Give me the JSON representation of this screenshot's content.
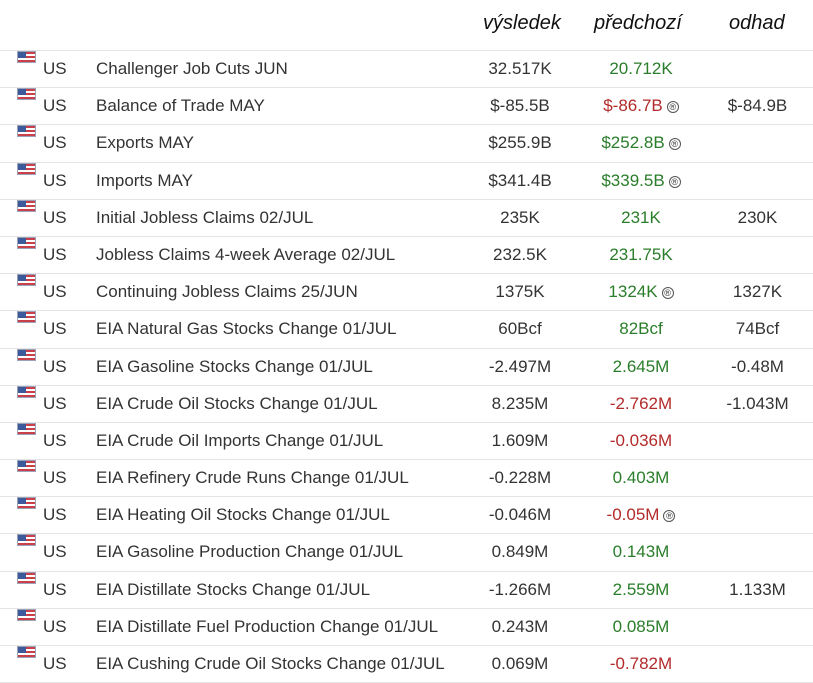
{
  "header": {
    "actual": "výsledek",
    "previous": "předchozí",
    "consensus": "odhad"
  },
  "revised_symbol": "®",
  "colors": {
    "positive": "#2a7d2a",
    "negative": "#b22a2a",
    "flag_red": "#c9404a",
    "flag_blue": "#3c5a9a"
  },
  "icons": {
    "country_flag": "us-flag-icon"
  },
  "rows": [
    {
      "country": "US",
      "event": "Challenger Job Cuts JUN",
      "actual": "32.517K",
      "previous": "20.712K",
      "prev_color": "green",
      "revised": false,
      "consensus": ""
    },
    {
      "country": "US",
      "event": "Balance of Trade MAY",
      "actual": "$-85.5B",
      "previous": "$-86.7B",
      "prev_color": "red",
      "revised": true,
      "consensus": "$-84.9B"
    },
    {
      "country": "US",
      "event": "Exports MAY",
      "actual": "$255.9B",
      "previous": "$252.8B",
      "prev_color": "green",
      "revised": true,
      "consensus": ""
    },
    {
      "country": "US",
      "event": "Imports MAY",
      "actual": "$341.4B",
      "previous": "$339.5B",
      "prev_color": "green",
      "revised": true,
      "consensus": ""
    },
    {
      "country": "US",
      "event": "Initial Jobless Claims 02/JUL",
      "actual": "235K",
      "previous": "231K",
      "prev_color": "green",
      "revised": false,
      "consensus": "230K"
    },
    {
      "country": "US",
      "event": "Jobless Claims 4-week Average 02/JUL",
      "actual": "232.5K",
      "previous": "231.75K",
      "prev_color": "green",
      "revised": false,
      "consensus": ""
    },
    {
      "country": "US",
      "event": "Continuing Jobless Claims 25/JUN",
      "actual": "1375K",
      "previous": "1324K",
      "prev_color": "green",
      "revised": true,
      "consensus": "1327K"
    },
    {
      "country": "US",
      "event": "EIA Natural Gas Stocks Change 01/JUL",
      "actual": "60Bcf",
      "previous": "82Bcf",
      "prev_color": "green",
      "revised": false,
      "consensus": "74Bcf"
    },
    {
      "country": "US",
      "event": "EIA Gasoline Stocks Change 01/JUL",
      "actual": "-2.497M",
      "previous": "2.645M",
      "prev_color": "green",
      "revised": false,
      "consensus": "-0.48M"
    },
    {
      "country": "US",
      "event": "EIA Crude Oil Stocks Change 01/JUL",
      "actual": "8.235M",
      "previous": "-2.762M",
      "prev_color": "red",
      "revised": false,
      "consensus": "-1.043M"
    },
    {
      "country": "US",
      "event": "EIA Crude Oil Imports Change 01/JUL",
      "actual": "1.609M",
      "previous": "-0.036M",
      "prev_color": "red",
      "revised": false,
      "consensus": ""
    },
    {
      "country": "US",
      "event": "EIA Refinery Crude Runs Change 01/JUL",
      "actual": "-0.228M",
      "previous": "0.403M",
      "prev_color": "green",
      "revised": false,
      "consensus": ""
    },
    {
      "country": "US",
      "event": "EIA Heating Oil Stocks Change 01/JUL",
      "actual": "-0.046M",
      "previous": "-0.05M",
      "prev_color": "red",
      "revised": true,
      "consensus": ""
    },
    {
      "country": "US",
      "event": "EIA Gasoline Production Change 01/JUL",
      "actual": "0.849M",
      "previous": "0.143M",
      "prev_color": "green",
      "revised": false,
      "consensus": ""
    },
    {
      "country": "US",
      "event": "EIA Distillate Stocks Change 01/JUL",
      "actual": "-1.266M",
      "previous": "2.559M",
      "prev_color": "green",
      "revised": false,
      "consensus": "1.133M"
    },
    {
      "country": "US",
      "event": "EIA Distillate Fuel Production Change 01/JUL",
      "actual": "0.243M",
      "previous": "0.085M",
      "prev_color": "green",
      "revised": false,
      "consensus": ""
    },
    {
      "country": "US",
      "event": "EIA Cushing Crude Oil Stocks Change 01/JUL",
      "actual": "0.069M",
      "previous": "-0.782M",
      "prev_color": "red",
      "revised": false,
      "consensus": ""
    }
  ]
}
